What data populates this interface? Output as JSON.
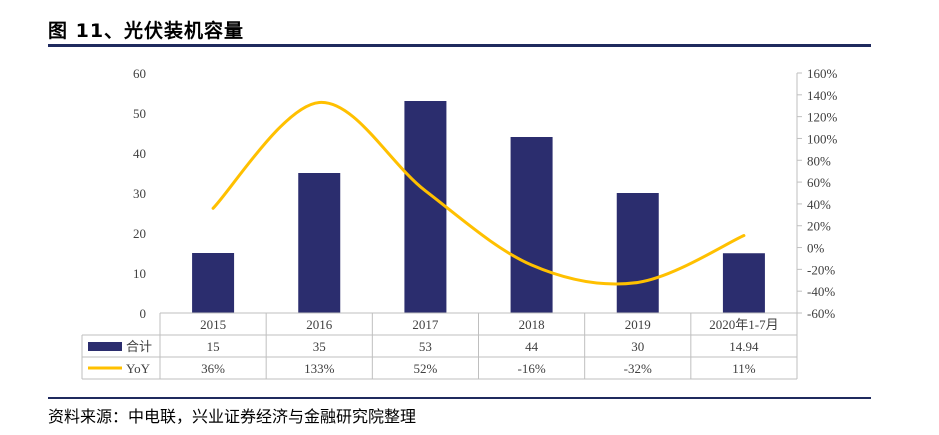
{
  "figure": {
    "title": "图 11、光伏装机容量",
    "source": "资料来源：中电联，兴业证券经济与金融研究院整理"
  },
  "colors": {
    "bar": "#2b2d6e",
    "line": "#ffc000",
    "axis": "#bfbfbf",
    "rule": "#1f2a5e"
  },
  "chart_data": {
    "type": "bar",
    "categories": [
      "2015",
      "2016",
      "2017",
      "2018",
      "2019",
      "2020年1-7月"
    ],
    "series": [
      {
        "name": "合计",
        "type": "bar",
        "axis": "left",
        "values": [
          15,
          35,
          53,
          44,
          30,
          14.94
        ],
        "labels": [
          "15",
          "35",
          "53",
          "44",
          "30",
          "14.94"
        ]
      },
      {
        "name": "YoY",
        "type": "line",
        "axis": "right",
        "values": [
          36,
          133,
          52,
          -16,
          -32,
          11
        ],
        "labels": [
          "36%",
          "133%",
          "52%",
          "-16%",
          "-32%",
          "11%"
        ]
      }
    ],
    "ylim": [
      0,
      60
    ],
    "yticks": [
      "0",
      "10",
      "20",
      "30",
      "40",
      "50",
      "60"
    ],
    "y2lim": [
      -60,
      160
    ],
    "y2ticks": [
      "-60%",
      "-40%",
      "-20%",
      "0%",
      "20%",
      "40%",
      "60%",
      "80%",
      "100%",
      "120%",
      "140%",
      "160%"
    ],
    "grid": false,
    "legend": "data-table"
  }
}
